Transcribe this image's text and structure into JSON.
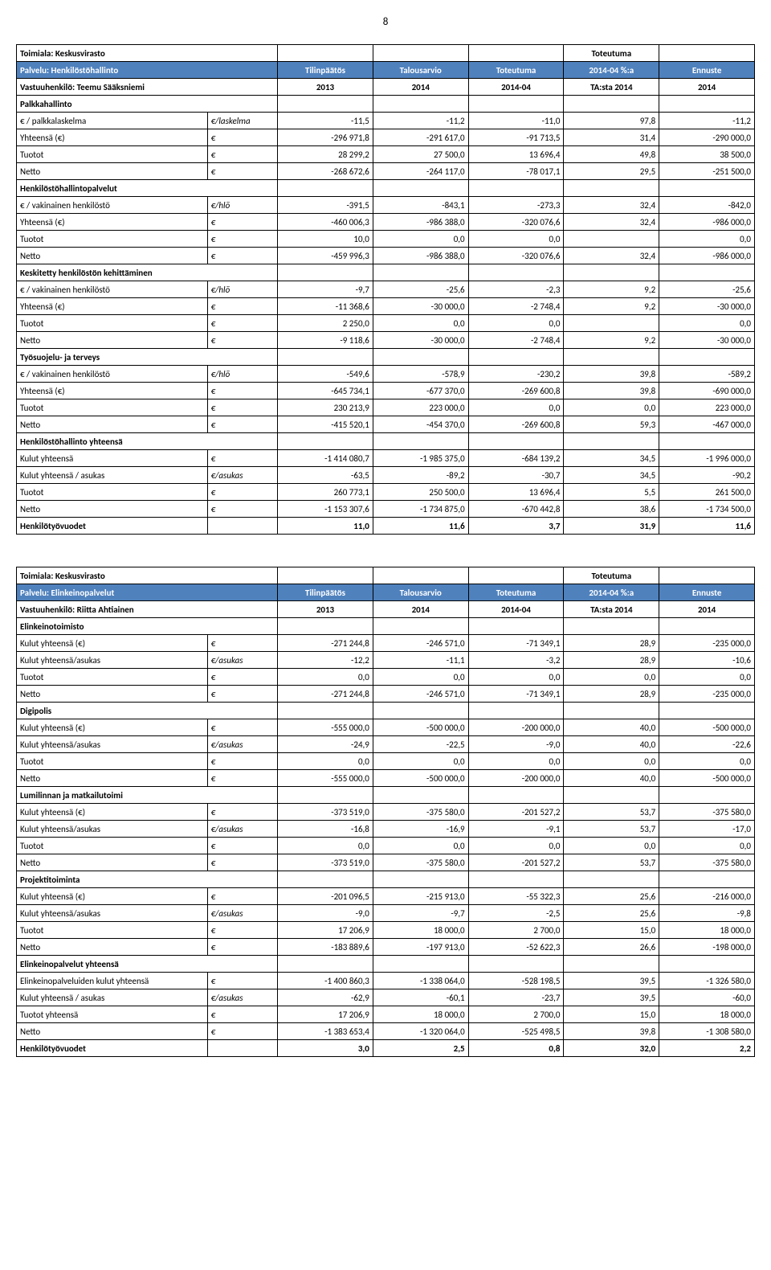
{
  "page_number": "8",
  "table1": {
    "header": {
      "r0": {
        "toimiala": "Toimiala: Keskusvirasto",
        "c5_a": "Toteutuma"
      },
      "r1": {
        "palvelu": "Palvelu: Henkilöstöhallinto",
        "c2": "Tilinpäätös",
        "c3": "Talousarvio",
        "c4": "Toteutuma",
        "c5": "2014-04 %:a",
        "c6": "Ennuste"
      },
      "r2": {
        "vast": "Vastuuhenkilö: Teemu Sääksniemi",
        "c2": "2013",
        "c3": "2014",
        "c4": "2014-04",
        "c5": "TA:sta 2014",
        "c6": "2014"
      }
    },
    "rows": [
      {
        "label": "Palkkahallinto",
        "bold": true
      },
      {
        "label": "  € / palkkalaskelma",
        "unit": "€/laskelma",
        "d": [
          "-11,5",
          "-11,2",
          "-11,0",
          "97,8",
          "-11,2"
        ]
      },
      {
        "label": "  Yhteensä (€)",
        "unit": "€",
        "d": [
          "-296 971,8",
          "-291 617,0",
          "-91 713,5",
          "31,4",
          "-290 000,0"
        ]
      },
      {
        "label": "  Tuotot",
        "unit": "€",
        "d": [
          "28 299,2",
          "27 500,0",
          "13 696,4",
          "49,8",
          "38 500,0"
        ]
      },
      {
        "label": "  Netto",
        "unit": "€",
        "d": [
          "-268 672,6",
          "-264 117,0",
          "-78 017,1",
          "29,5",
          "-251 500,0"
        ]
      },
      {
        "label": "Henkilöstöhallintopalvelut",
        "bold": true
      },
      {
        "label": "  € / vakinainen henkilöstö",
        "unit": "€/hlö",
        "d": [
          "-391,5",
          "-843,1",
          "-273,3",
          "32,4",
          "-842,0"
        ]
      },
      {
        "label": "  Yhteensä (€)",
        "unit": "€",
        "d": [
          "-460 006,3",
          "-986 388,0",
          "-320 076,6",
          "32,4",
          "-986 000,0"
        ]
      },
      {
        "label": "  Tuotot",
        "unit": "€",
        "d": [
          "10,0",
          "0,0",
          "0,0",
          "",
          "0,0"
        ]
      },
      {
        "label": "  Netto",
        "unit": "€",
        "d": [
          "-459 996,3",
          "-986 388,0",
          "-320 076,6",
          "32,4",
          "-986 000,0"
        ]
      },
      {
        "label": "Keskitetty henkilöstön kehittäminen",
        "bold": true
      },
      {
        "label": "  € / vakinainen henkilöstö",
        "unit": "€/hlö",
        "d": [
          "-9,7",
          "-25,6",
          "-2,3",
          "9,2",
          "-25,6"
        ]
      },
      {
        "label": "  Yhteensä (€)",
        "unit": "€",
        "d": [
          "-11 368,6",
          "-30 000,0",
          "-2 748,4",
          "9,2",
          "-30 000,0"
        ]
      },
      {
        "label": "  Tuotot",
        "unit": "€",
        "d": [
          "2 250,0",
          "0,0",
          "0,0",
          "",
          "0,0"
        ]
      },
      {
        "label": "  Netto",
        "unit": "€",
        "d": [
          "-9 118,6",
          "-30 000,0",
          "-2 748,4",
          "9,2",
          "-30 000,0"
        ]
      },
      {
        "label": "Työsuojelu- ja terveys",
        "bold": true
      },
      {
        "label": "  € / vakinainen henkilöstö",
        "unit": "€/hlö",
        "d": [
          "-549,6",
          "-578,9",
          "-230,2",
          "39,8",
          "-589,2"
        ]
      },
      {
        "label": "  Yhteensä (€)",
        "unit": "€",
        "d": [
          "-645 734,1",
          "-677 370,0",
          "-269 600,8",
          "39,8",
          "-690 000,0"
        ]
      },
      {
        "label": "  Tuotot",
        "unit": "€",
        "d": [
          "230 213,9",
          "223 000,0",
          "0,0",
          "0,0",
          "223 000,0"
        ]
      },
      {
        "label": "  Netto",
        "unit": "€",
        "d": [
          "-415 520,1",
          "-454 370,0",
          "-269 600,8",
          "59,3",
          "-467 000,0"
        ]
      },
      {
        "label": "Henkilöstöhallinto yhteensä",
        "bold": true
      },
      {
        "label": "  Kulut yhteensä",
        "unit": "€",
        "d": [
          "-1 414 080,7",
          "-1 985 375,0",
          "-684 139,2",
          "34,5",
          "-1 996 000,0"
        ]
      },
      {
        "label": "  Kulut yhteensä / asukas",
        "unit": "€/asukas",
        "d": [
          "-63,5",
          "-89,2",
          "-30,7",
          "34,5",
          "-90,2"
        ]
      },
      {
        "label": "  Tuotot",
        "unit": "€",
        "d": [
          "260 773,1",
          "250 500,0",
          "13 696,4",
          "5,5",
          "261 500,0"
        ]
      },
      {
        "label": "  Netto",
        "unit": "€",
        "d": [
          "-1 153 307,6",
          "-1 734 875,0",
          "-670 442,8",
          "38,6",
          "-1 734 500,0"
        ]
      },
      {
        "label": "Henkilötyövuodet",
        "unit": "",
        "d": [
          "11,0",
          "11,6",
          "3,7",
          "31,9",
          "11,6"
        ],
        "bold": true
      }
    ]
  },
  "table2": {
    "header": {
      "r0": {
        "toimiala": "Toimiala: Keskusvirasto",
        "c5_a": "Toteutuma"
      },
      "r1": {
        "palvelu": "Palvelu: Elinkeinopalvelut",
        "c2": "Tilinpäätös",
        "c3": "Talousarvio",
        "c4": "Toteutuma",
        "c5": "2014-04 %:a",
        "c6": "Ennuste"
      },
      "r2": {
        "vast": "Vastuuhenkilö: Riitta Ahtiainen",
        "c2": "2013",
        "c3": "2014",
        "c4": "2014-04",
        "c5": "TA:sta 2014",
        "c6": "2014"
      }
    },
    "rows": [
      {
        "label": "Elinkeinotoimisto",
        "bold": true
      },
      {
        "label": "  Kulut yhteensä (€)",
        "unit": "€",
        "d": [
          "-271 244,8",
          "-246 571,0",
          "-71 349,1",
          "28,9",
          "-235 000,0"
        ]
      },
      {
        "label": "  Kulut yhteensä/asukas",
        "unit": "€/asukas",
        "d": [
          "-12,2",
          "-11,1",
          "-3,2",
          "28,9",
          "-10,6"
        ]
      },
      {
        "label": "  Tuotot",
        "unit": "€",
        "d": [
          "0,0",
          "0,0",
          "0,0",
          "0,0",
          "0,0"
        ]
      },
      {
        "label": "  Netto",
        "unit": "€",
        "d": [
          "-271 244,8",
          "-246 571,0",
          "-71 349,1",
          "28,9",
          "-235 000,0"
        ]
      },
      {
        "label": "Digipolis",
        "bold": true
      },
      {
        "label": "  Kulut yhteensä (€)",
        "unit": "€",
        "d": [
          "-555 000,0",
          "-500 000,0",
          "-200 000,0",
          "40,0",
          "-500 000,0"
        ]
      },
      {
        "label": "  Kulut yhteensä/asukas",
        "unit": "€/asukas",
        "d": [
          "-24,9",
          "-22,5",
          "-9,0",
          "40,0",
          "-22,6"
        ]
      },
      {
        "label": "  Tuotot",
        "unit": "€",
        "d": [
          "0,0",
          "0,0",
          "0,0",
          "0,0",
          "0,0"
        ]
      },
      {
        "label": "  Netto",
        "unit": "€",
        "d": [
          "-555 000,0",
          "-500 000,0",
          "-200 000,0",
          "40,0",
          "-500 000,0"
        ]
      },
      {
        "label": "Lumilinnan ja matkailutoimi",
        "bold": true
      },
      {
        "label": "  Kulut yhteensä (€)",
        "unit": "€",
        "d": [
          "-373 519,0",
          "-375 580,0",
          "-201 527,2",
          "53,7",
          "-375 580,0"
        ]
      },
      {
        "label": "  Kulut yhteensä/asukas",
        "unit": "€/asukas",
        "d": [
          "-16,8",
          "-16,9",
          "-9,1",
          "53,7",
          "-17,0"
        ]
      },
      {
        "label": "  Tuotot",
        "unit": "€",
        "d": [
          "0,0",
          "0,0",
          "0,0",
          "0,0",
          "0,0"
        ]
      },
      {
        "label": "  Netto",
        "unit": "€",
        "d": [
          "-373 519,0",
          "-375 580,0",
          "-201 527,2",
          "53,7",
          "-375 580,0"
        ]
      },
      {
        "label": "Projektitoiminta",
        "bold": true
      },
      {
        "label": "  Kulut yhteensä (€)",
        "unit": "€",
        "d": [
          "-201 096,5",
          "-215 913,0",
          "-55 322,3",
          "25,6",
          "-216 000,0"
        ]
      },
      {
        "label": "  Kulut yhteensä/asukas",
        "unit": "€/asukas",
        "d": [
          "-9,0",
          "-9,7",
          "-2,5",
          "25,6",
          "-9,8"
        ]
      },
      {
        "label": "  Tuotot",
        "unit": "€",
        "d": [
          "17 206,9",
          "18 000,0",
          "2 700,0",
          "15,0",
          "18 000,0"
        ]
      },
      {
        "label": "  Netto",
        "unit": "€",
        "d": [
          "-183 889,6",
          "-197 913,0",
          "-52 622,3",
          "26,6",
          "-198 000,0"
        ]
      },
      {
        "label": "Elinkeinopalvelut yhteensä",
        "bold": true
      },
      {
        "label": "  Elinkeinopalveluiden kulut yhteensä",
        "unit": "€",
        "d": [
          "-1 400 860,3",
          "-1 338 064,0",
          "-528 198,5",
          "39,5",
          "-1 326 580,0"
        ]
      },
      {
        "label": "  Kulut yhteensä / asukas",
        "unit": "€/asukas",
        "d": [
          "-62,9",
          "-60,1",
          "-23,7",
          "39,5",
          "-60,0"
        ]
      },
      {
        "label": "  Tuotot yhteensä",
        "unit": "€",
        "d": [
          "17 206,9",
          "18 000,0",
          "2 700,0",
          "15,0",
          "18 000,0"
        ]
      },
      {
        "label": "  Netto",
        "unit": "€",
        "d": [
          "-1 383 653,4",
          "-1 320 064,0",
          "-525 498,5",
          "39,8",
          "-1 308 580,0"
        ]
      },
      {
        "label": "Henkilötyövuodet",
        "unit": "",
        "d": [
          "3,0",
          "2,5",
          "0,8",
          "32,0",
          "2,2"
        ],
        "bold": true
      }
    ]
  }
}
